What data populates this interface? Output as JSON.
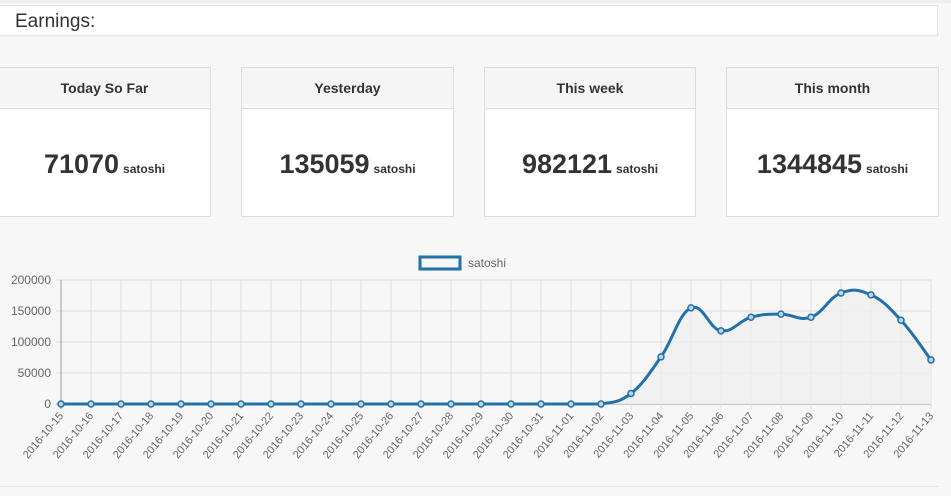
{
  "header": {
    "title": "Earnings:"
  },
  "cards": [
    {
      "label": "Today So Far",
      "value": "71070",
      "unit": "satoshi"
    },
    {
      "label": "Yesterday",
      "value": "135059",
      "unit": "satoshi"
    },
    {
      "label": "This week",
      "value": "982121",
      "unit": "satoshi"
    },
    {
      "label": "This month",
      "value": "1344845",
      "unit": "satoshi"
    }
  ],
  "colors": {
    "line": "#2271a8",
    "fill": "#efefef",
    "grid": "#dddddd"
  },
  "chart_data": {
    "type": "line",
    "legend": "satoshi",
    "legend_position": "top-center",
    "ylim": [
      0,
      200000
    ],
    "yticks": [
      "0",
      "50000",
      "100000",
      "150000",
      "200000"
    ],
    "grid": true,
    "x": [
      "2016-10-15",
      "2016-10-16",
      "2016-10-17",
      "2016-10-18",
      "2016-10-19",
      "2016-10-20",
      "2016-10-21",
      "2016-10-22",
      "2016-10-23",
      "2016-10-24",
      "2016-10-25",
      "2016-10-26",
      "2016-10-27",
      "2016-10-28",
      "2016-10-29",
      "2016-10-30",
      "2016-10-31",
      "2016-11-01",
      "2016-11-02",
      "2016-11-03",
      "2016-11-04",
      "2016-11-05",
      "2016-11-06",
      "2016-11-07",
      "2016-11-08",
      "2016-11-09",
      "2016-11-10",
      "2016-11-11",
      "2016-11-12",
      "2016-11-13"
    ],
    "series": [
      {
        "name": "satoshi",
        "values": [
          0,
          0,
          0,
          0,
          0,
          0,
          0,
          0,
          0,
          0,
          0,
          0,
          0,
          0,
          0,
          0,
          0,
          0,
          0,
          17000,
          76000,
          155000,
          118000,
          140000,
          145000,
          140000,
          179000,
          176000,
          135059,
          71070
        ]
      }
    ]
  }
}
